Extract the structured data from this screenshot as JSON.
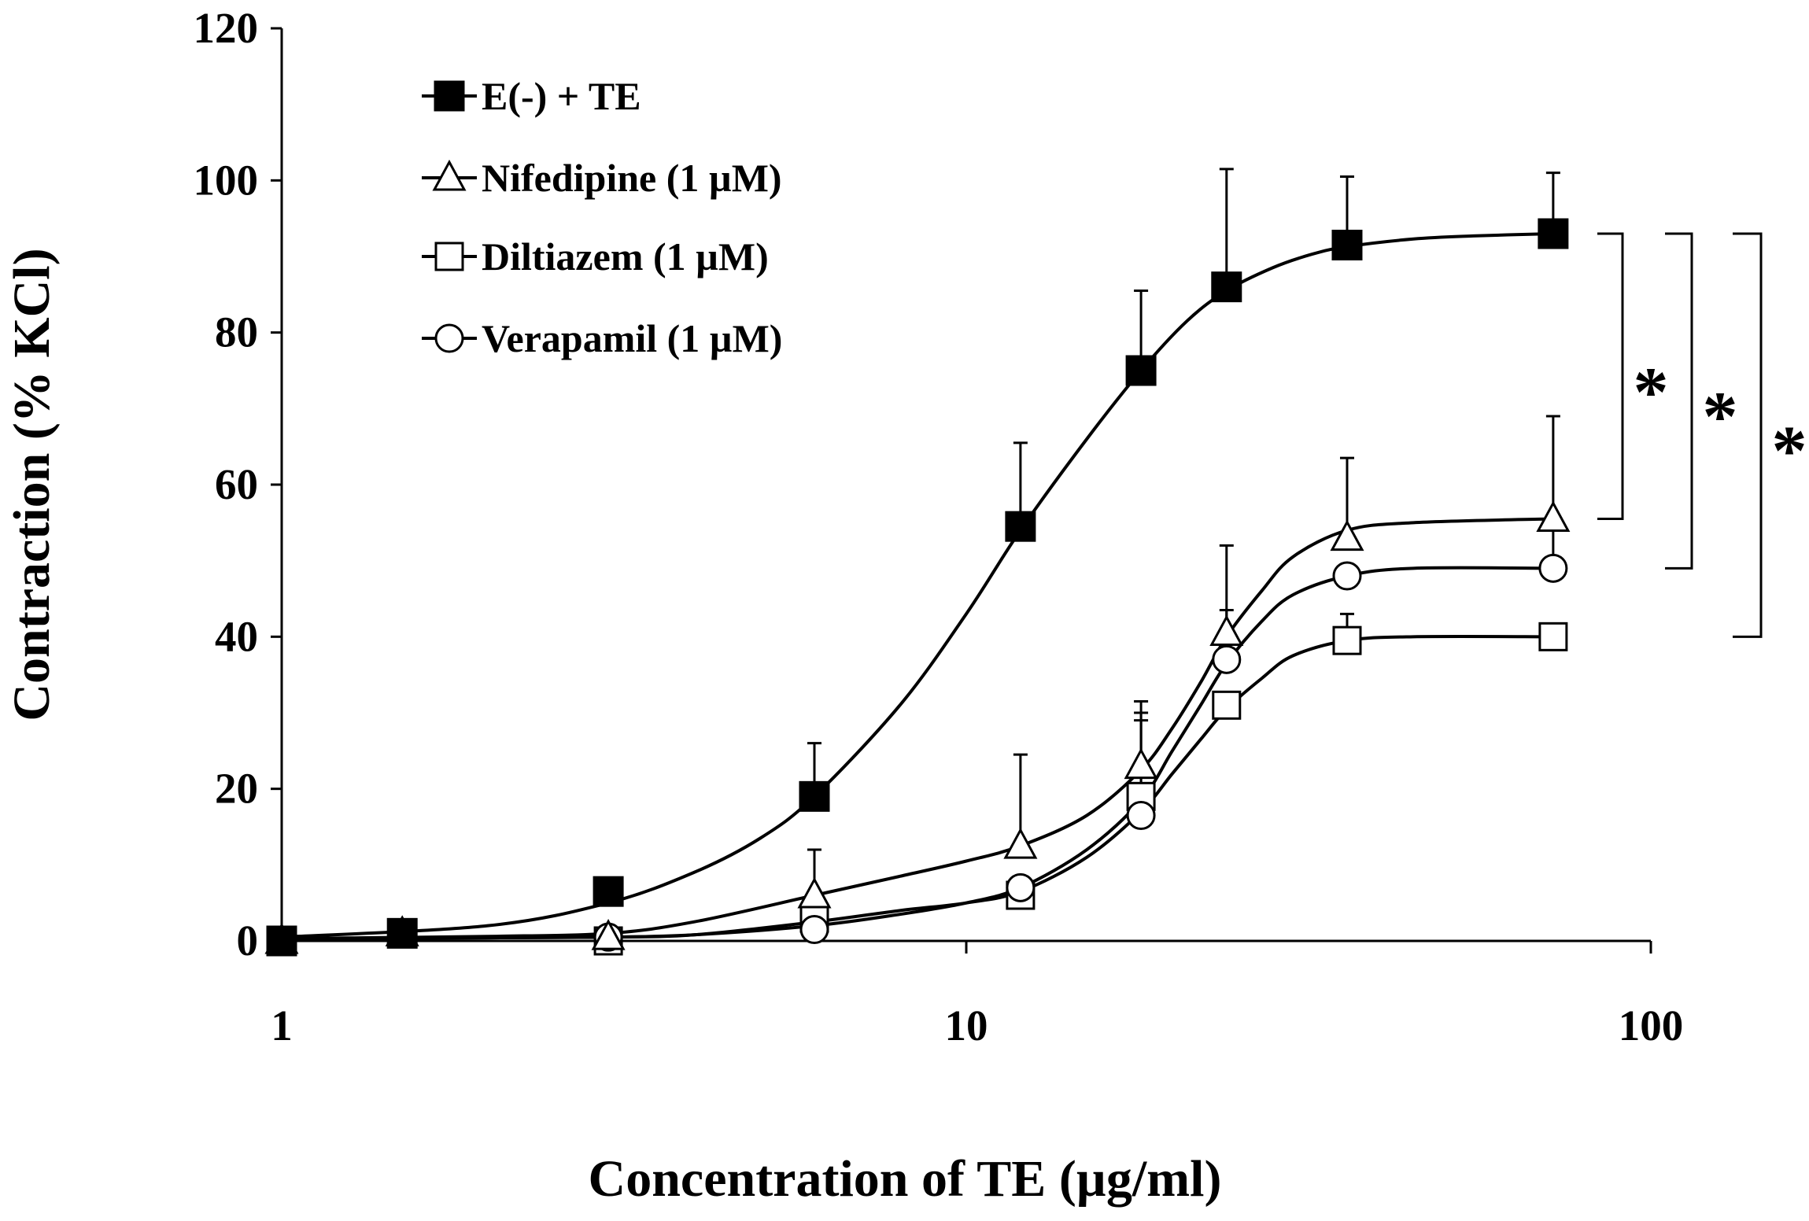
{
  "chart_data": {
    "type": "line",
    "title": "",
    "xlabel": "Concentration of TE (µg/ml)",
    "ylabel": "Contraction (% KCl)",
    "x_scale": "log",
    "xlim": [
      1,
      100
    ],
    "ylim": [
      0,
      120
    ],
    "x_ticks": [
      "1",
      "10",
      "100"
    ],
    "y_ticks": [
      "0",
      "20",
      "40",
      "60",
      "80",
      "100",
      "120"
    ],
    "legend_position": "top-left",
    "x": [
      1,
      1.5,
      3,
      6,
      12,
      18,
      24,
      36,
      72
    ],
    "series": [
      {
        "name": "E(-) + TE",
        "marker": "filled-square",
        "values": [
          0,
          1,
          6.5,
          19,
          54.5,
          75,
          86,
          91.5,
          93
        ],
        "error": [
          0,
          0,
          1.5,
          7,
          11,
          10.5,
          15.5,
          9,
          8
        ],
        "fit_x": [
          1,
          2,
          3,
          4,
          5,
          6,
          8,
          10,
          12,
          15,
          18,
          21,
          24,
          28,
          32,
          36,
          45,
          55,
          72
        ],
        "fit_y": [
          0.5,
          2,
          5,
          9,
          13.5,
          19,
          31,
          43,
          54,
          66,
          75,
          81.5,
          85.5,
          88.5,
          90.3,
          91.3,
          92.3,
          92.7,
          93
        ]
      },
      {
        "name": "Nifedipine (1 µM)",
        "marker": "open-triangle",
        "values": [
          0,
          1,
          0.5,
          6,
          12.5,
          23,
          40.5,
          53,
          55.5
        ],
        "error": [
          0,
          0,
          0,
          6,
          12,
          8.5,
          11.5,
          10.5,
          13.5
        ],
        "fit_x": [
          1,
          2,
          3,
          4,
          6,
          8,
          10,
          12,
          15,
          18,
          20,
          22,
          24,
          27,
          30,
          36,
          45,
          72
        ],
        "fit_y": [
          0.3,
          0.6,
          1,
          2.5,
          6,
          8.5,
          10.5,
          12.5,
          16.5,
          22.5,
          28,
          34,
          40,
          46,
          50.5,
          54,
          55,
          55.5
        ]
      },
      {
        "name": "Diltiazem (1 µM)",
        "marker": "open-square",
        "values": [
          0,
          1,
          0,
          3,
          6,
          19,
          31,
          39.5,
          40
        ],
        "error": [
          0,
          0,
          0,
          0,
          0,
          11,
          0,
          3.5,
          0
        ],
        "fit_x": [
          1,
          2,
          3,
          4,
          6,
          8,
          10,
          12,
          15,
          18,
          20,
          22,
          24,
          27,
          30,
          36,
          45,
          72
        ],
        "fit_y": [
          0.3,
          0.4,
          0.5,
          0.8,
          2.5,
          4,
          5,
          6.5,
          11,
          17,
          22,
          26.5,
          30.5,
          34.5,
          37.5,
          39.5,
          40,
          40
        ]
      },
      {
        "name": "Verapamil (1 µM)",
        "marker": "open-circle",
        "values": [
          0,
          1,
          0.5,
          1.5,
          7,
          16.5,
          37,
          48,
          49
        ],
        "error": [
          0,
          0,
          0,
          0,
          0,
          12.5,
          6.5,
          0,
          6.5
        ],
        "fit_x": [
          1,
          2,
          3,
          4,
          6,
          8,
          10,
          12,
          15,
          18,
          20,
          22,
          24,
          27,
          30,
          36,
          45,
          72
        ],
        "fit_y": [
          0.3,
          0.4,
          0.5,
          0.8,
          2,
          3.5,
          5,
          7,
          12,
          18.5,
          25,
          31,
          36.5,
          42,
          45.5,
          48,
          49,
          49
        ]
      }
    ],
    "significance": [
      {
        "label": "*",
        "compare": [
          "E(-) + TE",
          "Nifedipine (1 µM)"
        ]
      },
      {
        "label": "*",
        "compare": [
          "E(-) + TE",
          "Verapamil (1 µM)"
        ]
      },
      {
        "label": "*",
        "compare": [
          "E(-) + TE",
          "Diltiazem (1 µM)"
        ]
      }
    ]
  }
}
